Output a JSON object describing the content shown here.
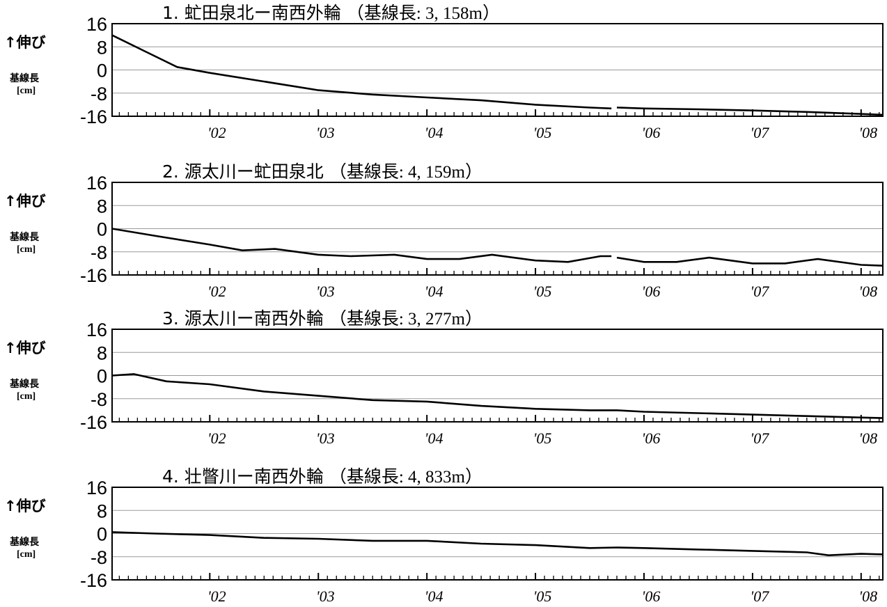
{
  "chart_data": [
    {
      "type": "line",
      "title_main": "1. 虻田泉北ー南西外輪",
      "title_base": "（基線長: 3, 158m）",
      "ylabel_line1": "↑伸び",
      "ylabel_line2": "基線長",
      "ylabel_line3": "[cm]",
      "ylim": [
        -16,
        16
      ],
      "yticks": [
        "16",
        "8",
        "0",
        "-8",
        "-16"
      ],
      "ytick_values": [
        16,
        8,
        0,
        -8,
        -16
      ],
      "xlim": [
        2001.1,
        2008.2
      ],
      "xticks": [
        "'02",
        "'03",
        "'04",
        "'05",
        "'06",
        "'07",
        "'08"
      ],
      "xtick_values": [
        2002.0,
        2003.0,
        2004.0,
        2005.0,
        2006.0,
        2007.0,
        2008.0
      ],
      "grid": true,
      "series": [
        {
          "x": [
            2001.1,
            2001.4,
            2001.7,
            2002.0,
            2002.5,
            2003.0,
            2003.5,
            2004.0,
            2004.5,
            2005.0,
            2005.5,
            2005.7,
            2005.75,
            2006.0,
            2006.5,
            2007.0,
            2007.5,
            2008.0,
            2008.2
          ],
          "y": [
            12,
            6.5,
            1,
            -1,
            -4,
            -7,
            -8.5,
            -9.5,
            -10.5,
            -12,
            -13,
            -13.3,
            -13,
            -13.3,
            -13.6,
            -14,
            -14.5,
            -15.2,
            -15.5
          ]
        }
      ]
    },
    {
      "type": "line",
      "title_main": "2. 源太川ー虻田泉北",
      "title_base": "（基線長: 4, 159m）",
      "ylabel_line1": "↑伸び",
      "ylabel_line2": "基線長",
      "ylabel_line3": "[cm]",
      "ylim": [
        -16,
        16
      ],
      "yticks": [
        "16",
        "8",
        "0",
        "-8",
        "-16"
      ],
      "ytick_values": [
        16,
        8,
        0,
        -8,
        -16
      ],
      "xlim": [
        2001.1,
        2008.2
      ],
      "xticks": [
        "'02",
        "'03",
        "'04",
        "'05",
        "'06",
        "'07",
        "'08"
      ],
      "xtick_values": [
        2002.0,
        2003.0,
        2004.0,
        2005.0,
        2006.0,
        2007.0,
        2008.0
      ],
      "grid": true,
      "series": [
        {
          "x": [
            2001.1,
            2001.5,
            2002.0,
            2002.3,
            2002.6,
            2003.0,
            2003.3,
            2003.7,
            2004.0,
            2004.3,
            2004.6,
            2005.0,
            2005.3,
            2005.6,
            2005.7,
            2005.75,
            2006.0,
            2006.3,
            2006.6,
            2007.0,
            2007.3,
            2007.6,
            2008.0,
            2008.2
          ],
          "y": [
            0,
            -2.5,
            -5.5,
            -7.5,
            -7,
            -9,
            -9.5,
            -9,
            -10.5,
            -10.5,
            -9,
            -11,
            -11.5,
            -9.5,
            -9.5,
            -10,
            -11.5,
            -11.5,
            -10,
            -12,
            -12,
            -10.5,
            -12.5,
            -12.8
          ]
        }
      ]
    },
    {
      "type": "line",
      "title_main": "3. 源太川ー南西外輪",
      "title_base": "（基線長: 3, 277m）",
      "ylabel_line1": "↑伸び",
      "ylabel_line2": "基線長",
      "ylabel_line3": "[cm]",
      "ylim": [
        -16,
        16
      ],
      "yticks": [
        "16",
        "8",
        "0",
        "-8",
        "-16"
      ],
      "ytick_values": [
        16,
        8,
        0,
        -8,
        -16
      ],
      "xlim": [
        2001.1,
        2008.2
      ],
      "xticks": [
        "'02",
        "'03",
        "'04",
        "'05",
        "'06",
        "'07",
        "'08"
      ],
      "xtick_values": [
        2002.0,
        2003.0,
        2004.0,
        2005.0,
        2006.0,
        2007.0,
        2008.0
      ],
      "grid": true,
      "series": [
        {
          "x": [
            2001.1,
            2001.3,
            2001.6,
            2002.0,
            2002.5,
            2003.0,
            2003.5,
            2004.0,
            2004.5,
            2005.0,
            2005.5,
            2005.75,
            2006.0,
            2006.5,
            2007.0,
            2007.5,
            2008.0,
            2008.2
          ],
          "y": [
            0,
            0.5,
            -2,
            -3,
            -5.5,
            -7,
            -8.5,
            -9,
            -10.5,
            -11.5,
            -12,
            -12,
            -12.5,
            -13,
            -13.5,
            -14,
            -14.5,
            -14.7
          ]
        }
      ]
    },
    {
      "type": "line",
      "title_main": "4. 壮瞥川ー南西外輪",
      "title_base": "（基線長: 4, 833m）",
      "ylabel_line1": "↑伸び",
      "ylabel_line2": "基線長",
      "ylabel_line3": "[cm]",
      "ylim": [
        -16,
        16
      ],
      "yticks": [
        "16",
        "8",
        "0",
        "-8",
        "-16"
      ],
      "ytick_values": [
        16,
        8,
        0,
        -8,
        -16
      ],
      "xlim": [
        2001.1,
        2008.2
      ],
      "xticks": [
        "'02",
        "'03",
        "'04",
        "'05",
        "'06",
        "'07",
        "'08"
      ],
      "xtick_values": [
        2002.0,
        2003.0,
        2004.0,
        2005.0,
        2006.0,
        2007.0,
        2008.0
      ],
      "grid": true,
      "series": [
        {
          "x": [
            2001.1,
            2001.5,
            2002.0,
            2002.5,
            2003.0,
            2003.5,
            2004.0,
            2004.5,
            2005.0,
            2005.5,
            2005.75,
            2006.0,
            2006.5,
            2007.0,
            2007.5,
            2007.7,
            2008.0,
            2008.2
          ],
          "y": [
            0.5,
            0,
            -0.5,
            -1.5,
            -1.8,
            -2.5,
            -2.5,
            -3.5,
            -4,
            -5,
            -4.8,
            -5,
            -5.5,
            -6,
            -6.5,
            -7.5,
            -7,
            -7.2
          ]
        }
      ]
    }
  ]
}
